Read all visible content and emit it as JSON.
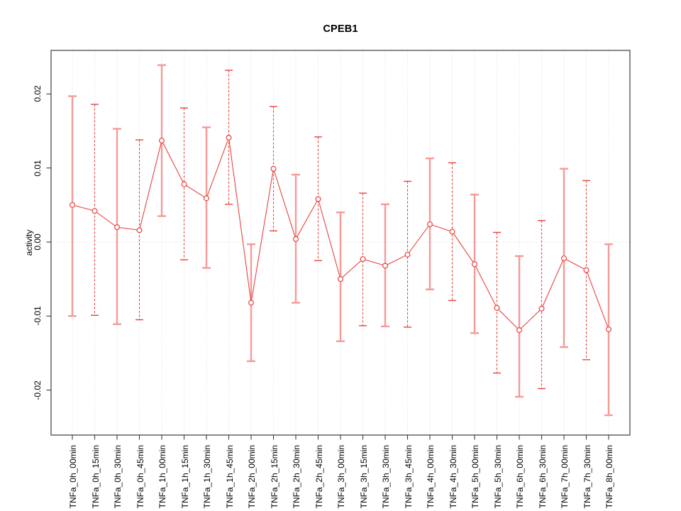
{
  "figure": {
    "background": "#ffffff"
  },
  "chart_data": {
    "type": "line",
    "title": "CPEB1",
    "xlabel": "",
    "ylabel": "activity",
    "ylim": [
      -0.026,
      0.026
    ],
    "yticks": [
      0.02,
      0.01,
      0.0,
      -0.01,
      -0.02
    ],
    "ytick_labels": [
      "0.02",
      "0.01",
      "0.00",
      "-0.01",
      "-0.02"
    ],
    "grid": "vertical dotted gridline at each category; dotted horizontal line at y=0; no legend",
    "marker": "open-circle",
    "categories": [
      "TNFa_0h_00min",
      "TNFa_0h_15min",
      "TNFa_0h_30min",
      "TNFa_0h_45min",
      "TNFa_1h_00min",
      "TNFa_1h_15min",
      "TNFa_1h_30min",
      "TNFa_1h_45min",
      "TNFa_2h_00min",
      "TNFa_2h_15min",
      "TNFa_2h_30min",
      "TNFa_2h_45min",
      "TNFa_3h_00min",
      "TNFa_3h_15min",
      "TNFa_3h_30min",
      "TNFa_3h_45min",
      "TNFa_4h_00min",
      "TNFa_4h_30min",
      "TNFa_5h_00min",
      "TNFa_5h_30min",
      "TNFa_6h_00min",
      "TNFa_6h_30min",
      "TNFa_7h_00min",
      "TNFa_7h_30min",
      "TNFa_8h_00min"
    ],
    "series": [
      {
        "name": "activity",
        "values": [
          0.005,
          0.0042,
          0.002,
          0.0016,
          0.0137,
          0.0078,
          0.0059,
          0.0141,
          -0.0082,
          0.0099,
          0.0004,
          0.0058,
          -0.005,
          -0.0023,
          -0.0032,
          -0.0017,
          0.0024,
          0.0014,
          -0.003,
          -0.0089,
          -0.0119,
          -0.009,
          -0.0022,
          -0.0038,
          -0.0118
        ],
        "error_low": [
          -0.01,
          -0.0099,
          -0.0111,
          -0.0105,
          0.0035,
          -0.0024,
          -0.0035,
          0.0051,
          -0.0161,
          0.0015,
          -0.0082,
          -0.0025,
          -0.0134,
          -0.0113,
          -0.0114,
          -0.0115,
          -0.0064,
          -0.0079,
          -0.0123,
          -0.0177,
          -0.0209,
          -0.0198,
          -0.0142,
          -0.0159,
          -0.0234
        ],
        "error_high": [
          0.0197,
          0.0186,
          0.0153,
          0.0138,
          0.0239,
          0.0181,
          0.0155,
          0.0232,
          -0.0003,
          0.0183,
          0.0091,
          0.0142,
          0.004,
          0.0066,
          0.0051,
          0.0082,
          0.0113,
          0.0107,
          0.0064,
          0.0013,
          -0.0019,
          0.0029,
          0.0099,
          0.0083,
          -0.0003
        ],
        "error_bar_styles": [
          "solid",
          "dashed",
          "solid",
          "dashed",
          "solid",
          "dashed",
          "solid",
          "dashed",
          "solid",
          "dashed",
          "solid",
          "dashed",
          "solid",
          "dashed",
          "solid",
          "dashed",
          "solid",
          "dashed",
          "solid",
          "dashed",
          "solid",
          "dashed",
          "solid",
          "dashed",
          "solid"
        ]
      }
    ],
    "colors": {
      "series_red": "#e8433f",
      "ci_solid_pink": "#f59a98",
      "gridline": "#d9d9d9",
      "axis": "#3c3c3c",
      "text": "#000000"
    },
    "legend_position": "none"
  }
}
